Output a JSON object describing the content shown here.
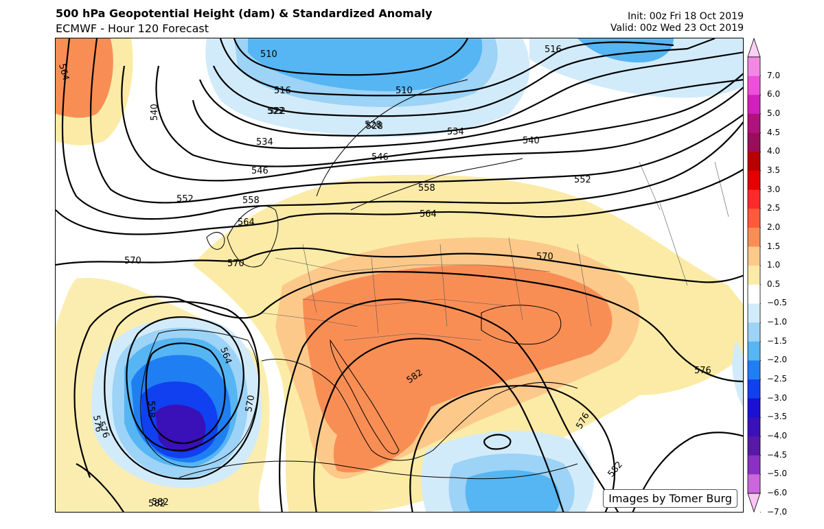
{
  "header": {
    "title": "500 hPa Geopotential Height (dam) & Standardized Anomaly",
    "subtitle": "ECMWF - Hour 120 Forecast",
    "init": "Init: 00z Fri 18 Oct 2019",
    "valid": "Valid: 00z Wed 23 Oct 2019"
  },
  "credit": "Images by Tomer Burg",
  "contours": [
    "510",
    "516",
    "522",
    "528",
    "534",
    "540",
    "546",
    "552",
    "558",
    "564",
    "570",
    "576",
    "582",
    "564",
    "510",
    "516",
    "528",
    "534",
    "540",
    "546",
    "552",
    "558",
    "564",
    "570",
    "570",
    "576",
    "582",
    "576",
    "582",
    "558",
    "570",
    "576",
    "582",
    "564",
    "522"
  ],
  "colorbar": {
    "labels": [
      "7.0",
      "6.0",
      "5.0",
      "4.5",
      "4.0",
      "3.5",
      "3.0",
      "2.5",
      "2.0",
      "1.5",
      "1.0",
      "0.5",
      "−0.5",
      "−1.0",
      "−1.5",
      "−2.0",
      "−2.5",
      "−3.0",
      "−3.5",
      "−4.0",
      "−4.5",
      "−5.0",
      "−6.0",
      "−7.0"
    ],
    "colors": [
      "#fbd0f4",
      "#f487e6",
      "#ee4fda",
      "#d21fbe",
      "#b0127d",
      "#9a0d5b",
      "#b80000",
      "#e60000",
      "#ff2a2a",
      "#ff5a3a",
      "#f98e55",
      "#fcc98a",
      "#fbeba6",
      "#ffffff",
      "#d2ebfb",
      "#9cd3f6",
      "#56b5f3",
      "#1f7ef2",
      "#1040f0",
      "#1a10d6",
      "#3a10b8",
      "#5818a8",
      "#8a30c4",
      "#cc66dd",
      "#f9c6f4"
    ]
  }
}
